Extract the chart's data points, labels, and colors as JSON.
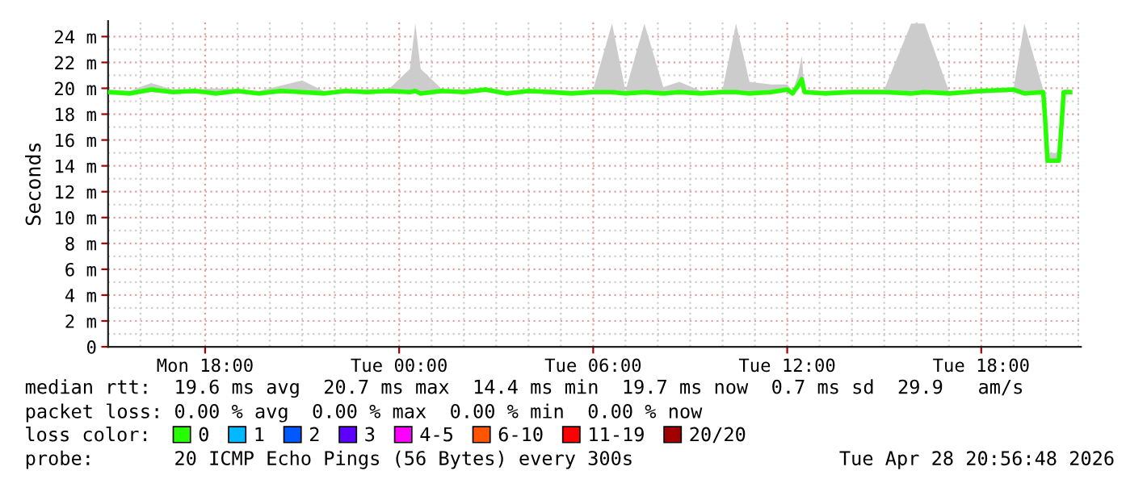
{
  "chart_data": {
    "type": "line",
    "ylabel": "Seconds",
    "x": [
      "2026-04-27T15:00",
      "2026-04-27T15:40",
      "2026-04-27T16:20",
      "2026-04-27T17:00",
      "2026-04-27T17:40",
      "2026-04-27T18:20",
      "2026-04-27T19:00",
      "2026-04-27T19:40",
      "2026-04-27T20:20",
      "2026-04-27T21:00",
      "2026-04-27T21:40",
      "2026-04-27T22:20",
      "2026-04-27T23:00",
      "2026-04-27T23:40",
      "2026-04-28T00:20",
      "2026-04-28T00:30",
      "2026-04-28T00:40",
      "2026-04-28T01:20",
      "2026-04-28T02:00",
      "2026-04-28T02:40",
      "2026-04-28T03:20",
      "2026-04-28T04:00",
      "2026-04-28T04:40",
      "2026-04-28T05:20",
      "2026-04-28T06:00",
      "2026-04-28T06:35",
      "2026-04-28T07:00",
      "2026-04-28T07:35",
      "2026-04-28T08:10",
      "2026-04-28T08:40",
      "2026-04-28T09:20",
      "2026-04-28T10:00",
      "2026-04-28T10:25",
      "2026-04-28T10:50",
      "2026-04-28T11:30",
      "2026-04-28T12:00",
      "2026-04-28T12:10",
      "2026-04-28T12:20",
      "2026-04-28T12:27",
      "2026-04-28T12:32",
      "2026-04-28T13:10",
      "2026-04-28T14:00",
      "2026-04-28T15:00",
      "2026-04-28T15:50",
      "2026-04-28T16:15",
      "2026-04-28T17:00",
      "2026-04-28T18:00",
      "2026-04-28T19:00",
      "2026-04-28T19:20",
      "2026-04-28T19:55",
      "2026-04-28T19:58",
      "2026-04-28T20:03",
      "2026-04-28T20:24",
      "2026-04-28T20:27",
      "2026-04-28T20:33",
      "2026-04-28T20:45"
    ],
    "series": [
      {
        "name": "0",
        "color": "#26ff00",
        "values": [
          19.7,
          19.6,
          19.9,
          19.7,
          19.8,
          19.6,
          19.8,
          19.6,
          19.8,
          19.7,
          19.6,
          19.8,
          19.7,
          19.8,
          19.7,
          19.8,
          19.6,
          19.8,
          19.7,
          19.9,
          19.6,
          19.8,
          19.7,
          19.6,
          19.7,
          19.7,
          19.6,
          19.7,
          19.6,
          19.7,
          19.6,
          19.7,
          19.7,
          19.6,
          19.7,
          19.9,
          19.6,
          20.2,
          20.7,
          19.7,
          19.6,
          19.7,
          19.7,
          19.6,
          19.7,
          19.6,
          19.8,
          19.9,
          19.6,
          19.7,
          18.0,
          14.4,
          14.4,
          16.0,
          19.7,
          19.7
        ],
        "upper": [
          19.9,
          19.8,
          20.4,
          19.9,
          19.9,
          20.0,
          19.9,
          19.8,
          20.2,
          20.6,
          19.8,
          19.9,
          19.9,
          19.9,
          21.5,
          25.0,
          21.5,
          19.9,
          19.9,
          20.0,
          19.8,
          19.9,
          19.9,
          19.8,
          19.9,
          25.0,
          19.8,
          25.0,
          20.1,
          20.5,
          19.8,
          19.9,
          25.0,
          20.5,
          20.3,
          20.3,
          19.8,
          21.0,
          22.5,
          19.9,
          19.8,
          19.9,
          19.9,
          25.0,
          25.0,
          19.8,
          19.9,
          20.0,
          25.0,
          19.9,
          19.7,
          15.0,
          15.0,
          16.2,
          19.9,
          19.9
        ],
        "lower": [
          19.6,
          19.5,
          19.7,
          19.6,
          19.6,
          19.5,
          19.6,
          19.5,
          19.6,
          19.6,
          19.5,
          19.6,
          19.6,
          19.6,
          19.6,
          19.6,
          19.5,
          19.6,
          19.6,
          19.7,
          19.5,
          19.6,
          19.6,
          19.5,
          19.6,
          19.6,
          19.5,
          19.6,
          19.5,
          19.6,
          19.5,
          19.6,
          19.6,
          19.5,
          19.6,
          19.7,
          19.5,
          19.9,
          20.2,
          19.6,
          19.5,
          19.6,
          19.6,
          19.5,
          19.6,
          19.5,
          19.6,
          19.7,
          19.5,
          19.6,
          17.9,
          14.4,
          14.4,
          15.9,
          19.6,
          19.6
        ]
      },
      {
        "name": "1",
        "color": "#00b8ff",
        "values": [
          null,
          null,
          null,
          null,
          null,
          null,
          null,
          null,
          null,
          null,
          null,
          null,
          null,
          null,
          null,
          null,
          null,
          null,
          null,
          null,
          null,
          null,
          null,
          null,
          null,
          null,
          null,
          null,
          null,
          null,
          null,
          null,
          null,
          null,
          null,
          null,
          null,
          null,
          null,
          null,
          null,
          null,
          null,
          null,
          null,
          null,
          null,
          null,
          null,
          null,
          null,
          null,
          null,
          null,
          null,
          null
        ]
      },
      {
        "name": "2",
        "color": "#0059ff",
        "values": [
          null,
          null,
          null,
          null,
          null,
          null,
          null,
          null,
          null,
          null,
          null,
          null,
          null,
          null,
          null,
          null,
          null,
          null,
          null,
          null,
          null,
          null,
          null,
          null,
          null,
          null,
          null,
          null,
          null,
          null,
          null,
          null,
          null,
          null,
          null,
          null,
          null,
          null,
          null,
          null,
          null,
          null,
          null,
          null,
          null,
          null,
          null,
          null,
          null,
          null,
          null,
          null,
          null,
          null,
          null,
          null
        ]
      },
      {
        "name": "3",
        "color": "#5e00ff",
        "values": [
          null,
          null,
          null,
          null,
          null,
          null,
          null,
          null,
          null,
          null,
          null,
          null,
          null,
          null,
          null,
          null,
          null,
          null,
          null,
          null,
          null,
          null,
          null,
          null,
          null,
          null,
          null,
          null,
          null,
          null,
          null,
          null,
          null,
          null,
          null,
          null,
          null,
          null,
          null,
          null,
          null,
          null,
          null,
          null,
          null,
          null,
          null,
          null,
          null,
          null,
          null,
          null,
          null,
          null,
          null,
          null
        ]
      },
      {
        "name": "4-5",
        "color": "#ff00ff",
        "values": [
          null,
          null,
          null,
          null,
          null,
          null,
          null,
          null,
          null,
          null,
          null,
          null,
          null,
          null,
          null,
          null,
          null,
          null,
          null,
          null,
          null,
          null,
          null,
          null,
          null,
          null,
          null,
          null,
          null,
          null,
          null,
          null,
          null,
          null,
          null,
          null,
          null,
          null,
          null,
          null,
          null,
          null,
          null,
          null,
          null,
          null,
          null,
          null,
          null,
          null,
          null,
          null,
          null,
          null,
          null,
          null
        ]
      },
      {
        "name": "6-10",
        "color": "#ff5500",
        "values": [
          null,
          null,
          null,
          null,
          null,
          null,
          null,
          null,
          null,
          null,
          null,
          null,
          null,
          null,
          null,
          null,
          null,
          null,
          null,
          null,
          null,
          null,
          null,
          null,
          null,
          null,
          null,
          null,
          null,
          null,
          null,
          null,
          null,
          null,
          null,
          null,
          null,
          null,
          null,
          null,
          null,
          null,
          null,
          null,
          null,
          null,
          null,
          null,
          null,
          null,
          null,
          null,
          null,
          null,
          null,
          null
        ]
      },
      {
        "name": "11-19",
        "color": "#ff0000",
        "values": [
          null,
          null,
          null,
          null,
          null,
          null,
          null,
          null,
          null,
          null,
          null,
          null,
          null,
          null,
          null,
          null,
          null,
          null,
          null,
          null,
          null,
          null,
          null,
          null,
          null,
          null,
          null,
          null,
          null,
          null,
          null,
          null,
          null,
          null,
          null,
          null,
          null,
          null,
          null,
          null,
          null,
          null,
          null,
          null,
          null,
          null,
          null,
          null,
          null,
          null,
          null,
          null,
          null,
          null,
          null,
          null
        ]
      },
      {
        "name": "20/20",
        "color": "#a10000",
        "values": [
          null,
          null,
          null,
          null,
          null,
          null,
          null,
          null,
          null,
          null,
          null,
          null,
          null,
          null,
          null,
          null,
          null,
          null,
          null,
          null,
          null,
          null,
          null,
          null,
          null,
          null,
          null,
          null,
          null,
          null,
          null,
          null,
          null,
          null,
          null,
          null,
          null,
          null,
          null,
          null,
          null,
          null,
          null,
          null,
          null,
          null,
          null,
          null,
          null,
          null,
          null,
          null,
          null,
          null,
          null,
          null
        ]
      }
    ],
    "legend_title": "loss color:",
    "legend": "bottom",
    "xlim": [
      "2026-04-27T15:00",
      "2026-04-28T21:05"
    ],
    "xticks": [
      {
        "value": "2026-04-27T18:00",
        "label": "Mon 18:00"
      },
      {
        "value": "2026-04-28T00:00",
        "label": "Tue 00:00"
      },
      {
        "value": "2026-04-28T06:00",
        "label": "Tue 06:00"
      },
      {
        "value": "2026-04-28T12:00",
        "label": "Tue 12:00"
      },
      {
        "value": "2026-04-28T18:00",
        "label": "Tue 18:00"
      }
    ],
    "ylim": [
      0,
      25.2
    ],
    "yticks": [
      0,
      {
        "value": 2,
        "label": "2 m"
      },
      {
        "value": 4,
        "label": "4 m"
      },
      {
        "value": 6,
        "label": "6 m"
      },
      {
        "value": 8,
        "label": "8 m"
      },
      {
        "value": 10,
        "label": "10 m"
      },
      {
        "value": 12,
        "label": "12 m"
      },
      {
        "value": 14,
        "label": "14 m"
      },
      {
        "value": 16,
        "label": "16 m"
      },
      {
        "value": 18,
        "label": "18 m"
      },
      {
        "value": 20,
        "label": "20 m"
      },
      {
        "value": 22,
        "label": "22 m"
      },
      {
        "value": 24,
        "label": "24 m"
      }
    ],
    "grid": true,
    "marker": "none",
    "line_style": "solid",
    "annotations": [
      "median rtt:  19.6 ms avg  20.7 ms max  14.4 ms min  19.7 ms now  0.7 ms sd  29.9   am/s",
      "packet loss: 0.00 % avg  0.00 % max  0.00 % min  0.00 % now",
      "probe:       20 ICMP Echo Pings (56 Bytes) every 300s",
      "Tue Apr 28 20:56:48 2026"
    ]
  }
}
